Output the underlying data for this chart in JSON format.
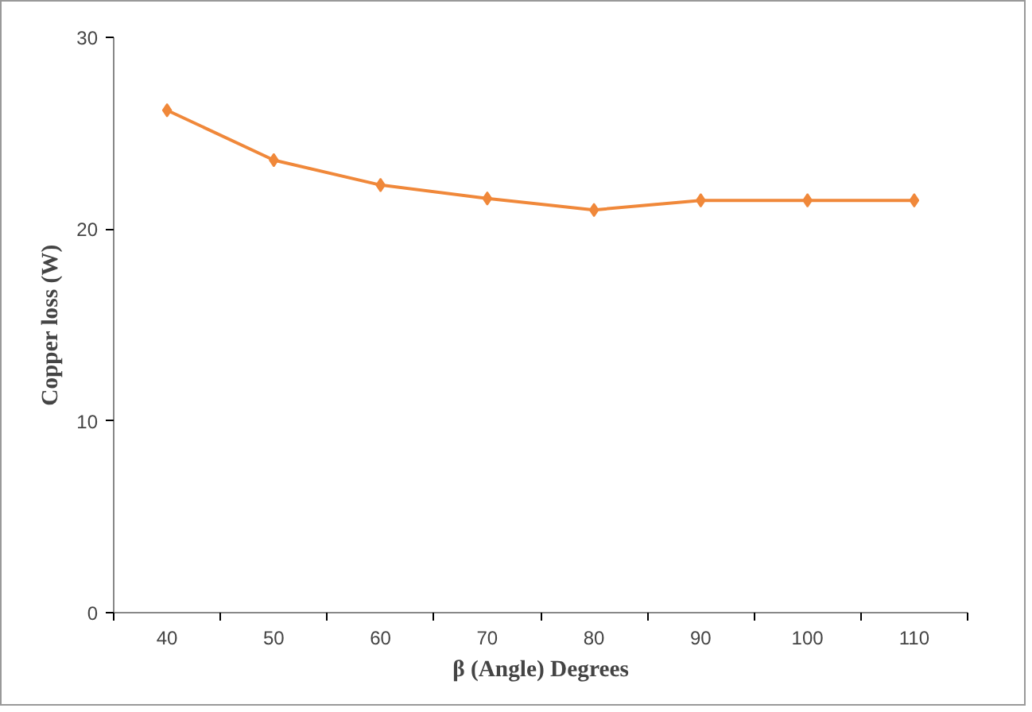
{
  "chart_data": {
    "type": "line",
    "xlabel": "β (Angle) Degrees",
    "ylabel": "Copper loss (W)",
    "categories": [
      "40",
      "50",
      "60",
      "70",
      "80",
      "90",
      "100",
      "110"
    ],
    "series": [
      {
        "color": "#f0883a",
        "values": [
          26.2,
          23.6,
          22.3,
          21.6,
          21.0,
          21.5,
          21.5,
          21.5
        ]
      }
    ],
    "ylim": [
      0,
      30
    ],
    "yticks": [
      0,
      10,
      20,
      30
    ],
    "grid": false,
    "marker": "diamond",
    "line_style": "solid"
  }
}
